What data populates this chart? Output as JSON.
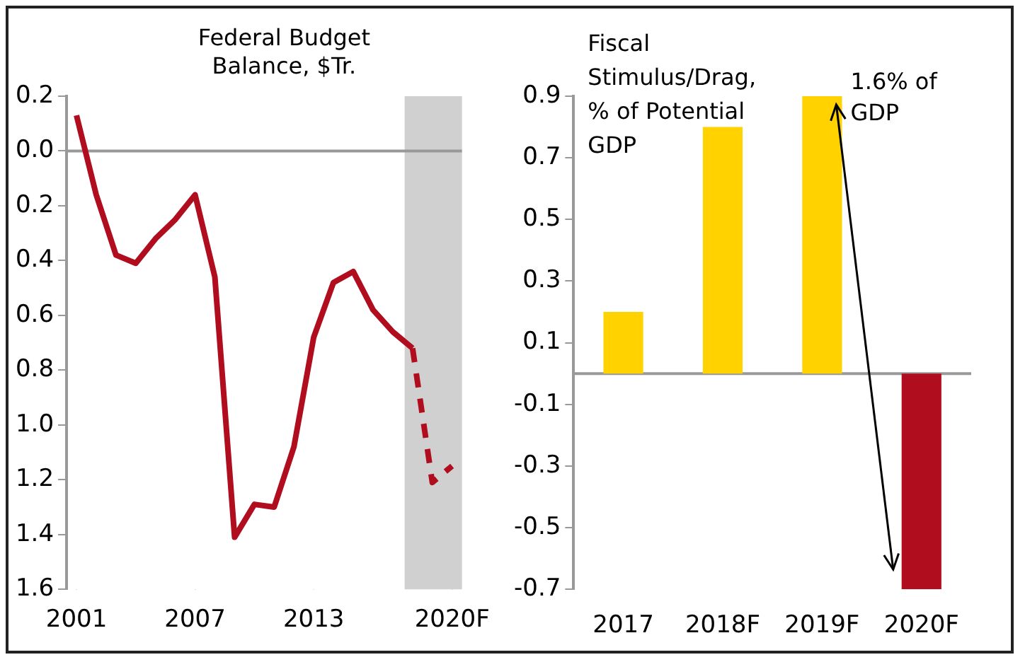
{
  "chart_data": [
    {
      "type": "line",
      "title": "Federal Budget Balance, $Tr.",
      "x": [
        2001,
        2002,
        2003,
        2004,
        2005,
        2006,
        2007,
        2008,
        2009,
        2010,
        2011,
        2012,
        2013,
        2014,
        2015,
        2016,
        2017,
        2018,
        2019,
        2020
      ],
      "series": [
        {
          "color": "#b00d1f",
          "line_style": "solid",
          "values": [
            0.13,
            -0.16,
            -0.38,
            -0.41,
            -0.32,
            -0.25,
            -0.16,
            -0.46,
            -1.41,
            -1.29,
            -1.3,
            -1.08,
            -0.68,
            -0.48,
            -0.44,
            -0.58,
            -0.66,
            -0.72,
            null,
            null
          ]
        },
        {
          "color": "#b00d1f",
          "line_style": "dashed",
          "values": [
            null,
            null,
            null,
            null,
            null,
            null,
            null,
            null,
            null,
            null,
            null,
            null,
            null,
            null,
            null,
            null,
            null,
            -0.72,
            -1.21,
            -1.15
          ]
        }
      ],
      "xlim": [
        2000.5,
        2020.5
      ],
      "xticks": [
        2001,
        2007,
        2013,
        {
          "value": 2020,
          "label": "2020F"
        }
      ],
      "ylim": [
        -1.6,
        0.2
      ],
      "yticks": [
        {
          "value": 0.2,
          "label": "0.2"
        },
        {
          "value": 0,
          "label": "0.0"
        },
        {
          "value": -0.2,
          "label": "0.2"
        },
        {
          "value": -0.4,
          "label": "0.4"
        },
        {
          "value": -0.6,
          "label": "0.6"
        },
        {
          "value": -0.8,
          "label": "0.8"
        },
        {
          "value": -1.0,
          "label": "1.0"
        },
        {
          "value": -1.2,
          "label": "1.2"
        },
        {
          "value": -1.4,
          "label": "1.4"
        },
        {
          "value": -1.6,
          "label": "1.6"
        }
      ],
      "bands": [
        {
          "axis": "x",
          "from": 2017.6,
          "to": 2020.5,
          "color": "#d0d0d0"
        }
      ],
      "ref_lines": [
        {
          "axis": "y",
          "value": 0,
          "color": "#999999"
        }
      ],
      "grid": false,
      "legend": false,
      "marker": "none"
    },
    {
      "type": "bar",
      "title": "Fiscal Stimulus/Drag, % of Potential GDP",
      "categories": [
        "2017",
        "2018F",
        "2019F",
        "2020F"
      ],
      "values": [
        0.2,
        0.8,
        0.9,
        -0.7
      ],
      "colors": [
        "#ffd200",
        "#ffd200",
        "#ffd200",
        "#b00d1f"
      ],
      "ylim": [
        -0.7,
        0.9
      ],
      "yticks": [
        0.9,
        0.7,
        0.5,
        0.3,
        0.1,
        -0.1,
        -0.3,
        -0.5,
        -0.7
      ],
      "ref_lines": [
        {
          "axis": "y",
          "value": 0,
          "color": "#999999"
        }
      ],
      "annotations": [
        "1.6% of GDP"
      ],
      "grid": false,
      "legend": false
    }
  ]
}
